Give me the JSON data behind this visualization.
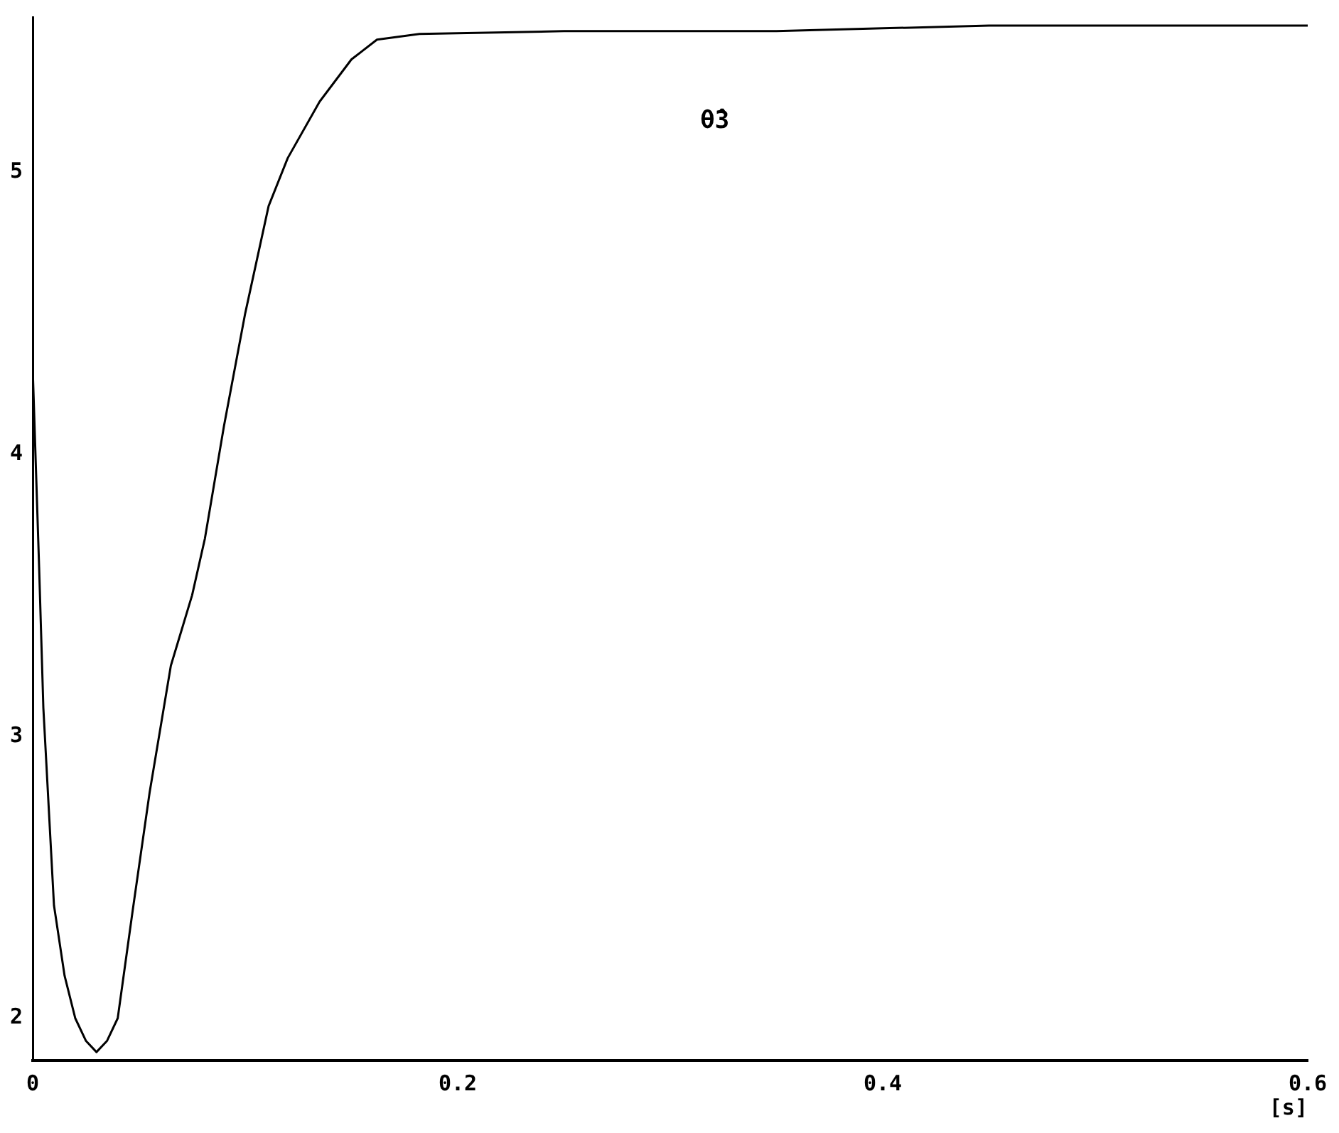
{
  "chart_data": {
    "type": "line",
    "xlabel": "[s]",
    "x": [
      0,
      0.003,
      0.005,
      0.01,
      0.015,
      0.02,
      0.025,
      0.03,
      0.035,
      0.04,
      0.047,
      0.055,
      0.065,
      0.075,
      0.081,
      0.09,
      0.1,
      0.111,
      0.12,
      0.135,
      0.15,
      0.162,
      0.182,
      0.25,
      0.3,
      0.35,
      0.4,
      0.45,
      0.5,
      0.55,
      0.6
    ],
    "series": [
      {
        "color": "#000000",
        "values": [
          4.3,
          3.6,
          3.1,
          2.4,
          2.15,
          2.0,
          1.92,
          1.88,
          1.92,
          2.0,
          2.38,
          2.8,
          3.25,
          3.5,
          3.7,
          4.1,
          4.5,
          4.88,
          5.05,
          5.25,
          5.4,
          5.47,
          5.49,
          5.5,
          5.5,
          5.5,
          5.51,
          5.52,
          5.52,
          5.52,
          5.52
        ]
      }
    ],
    "annotations": [
      "θ̂3"
    ],
    "xlim": [
      0,
      0.6
    ],
    "xticks": [
      0,
      0.2,
      0.4,
      0.6
    ],
    "ylim": [
      1.85,
      5.55
    ],
    "yticks": [
      2,
      3,
      4,
      5
    ],
    "grid": false,
    "legend": false,
    "marker": "none",
    "line_style": "solid"
  }
}
